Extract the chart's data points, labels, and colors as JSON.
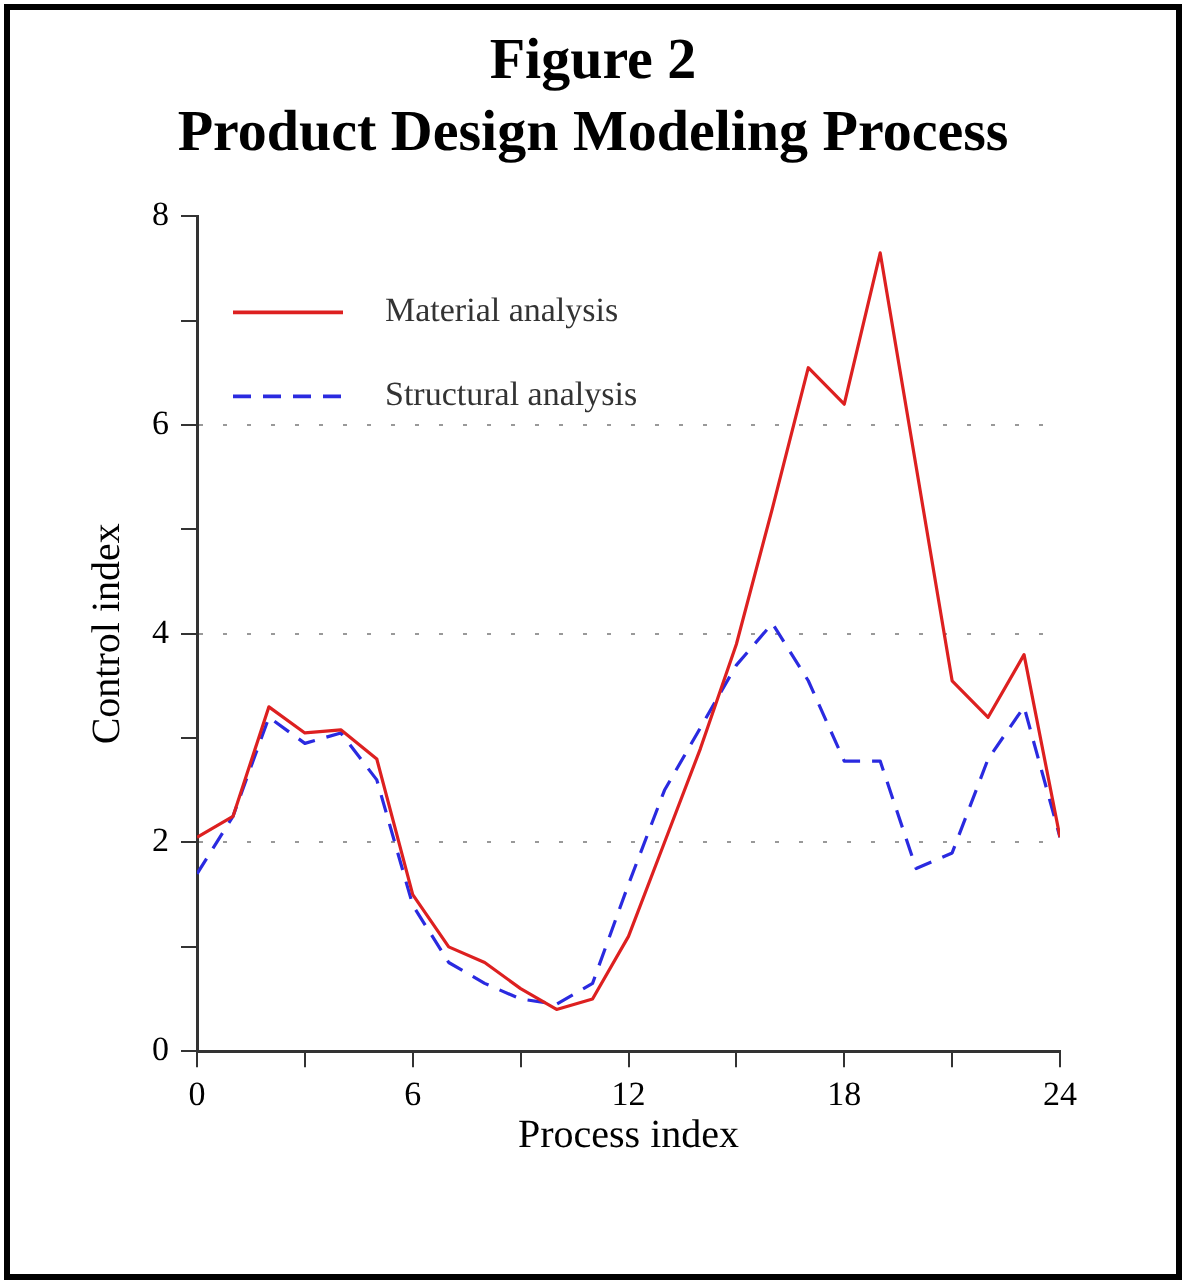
{
  "chart_data": {
    "type": "line",
    "title": "Figure 2",
    "subtitle": "Product Design Modeling Process",
    "xlabel": "Process index",
    "ylabel": "Control index",
    "x": [
      0,
      1,
      2,
      3,
      4,
      5,
      6,
      7,
      8,
      9,
      10,
      11,
      12,
      13,
      14,
      15,
      16,
      17,
      18,
      19,
      20,
      21,
      22,
      23,
      24
    ],
    "series": [
      {
        "name": "Material analysis",
        "color": "#dd2020",
        "line_style": "solid",
        "values": [
          2.05,
          2.25,
          3.3,
          3.05,
          3.08,
          2.8,
          1.5,
          1.0,
          0.85,
          0.6,
          0.4,
          0.5,
          1.1,
          2.0,
          2.9,
          3.9,
          5.2,
          6.55,
          6.2,
          7.65,
          5.6,
          3.55,
          3.2,
          3.8,
          2.05
        ]
      },
      {
        "name": "Structural analysis",
        "color": "#2a2ae0",
        "line_style": "dashed",
        "values": [
          1.7,
          2.25,
          3.2,
          2.95,
          3.05,
          2.6,
          1.4,
          0.85,
          0.65,
          0.5,
          0.45,
          0.65,
          1.6,
          2.5,
          3.1,
          3.7,
          4.1,
          3.55,
          2.78,
          2.78,
          1.75,
          1.9,
          2.8,
          3.3,
          2.05
        ]
      }
    ],
    "xlim": [
      0,
      24
    ],
    "xticks": [
      0,
      {
        "value": 3,
        "label": null
      },
      6,
      {
        "value": 9,
        "label": null
      },
      12,
      {
        "value": 15,
        "label": null
      },
      18,
      {
        "value": 21,
        "label": null
      },
      24
    ],
    "ylim": [
      0,
      8
    ],
    "yticks": [
      0,
      {
        "value": 1,
        "label": null
      },
      2,
      {
        "value": 3,
        "label": null
      },
      4,
      {
        "value": 5,
        "label": null
      },
      6,
      {
        "value": 7,
        "label": null
      },
      8
    ],
    "grid": "y",
    "legend": "top left",
    "marker": "none"
  }
}
